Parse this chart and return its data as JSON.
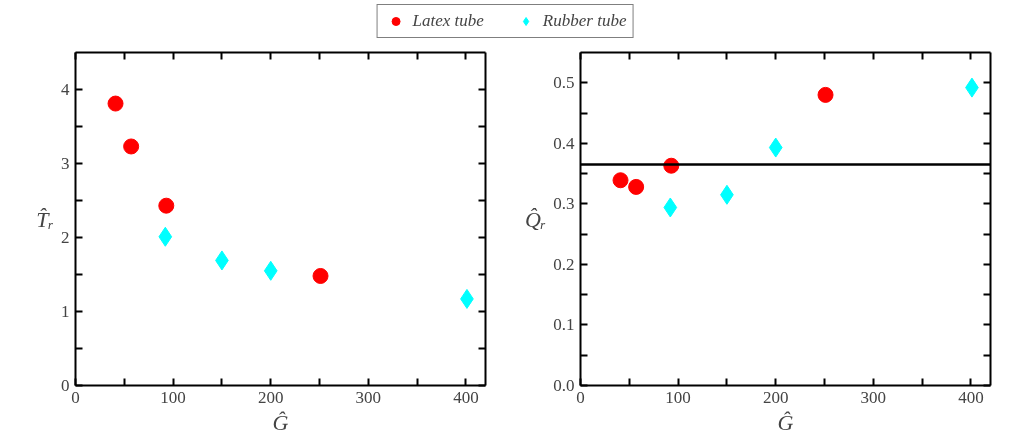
{
  "chart_data": [
    {
      "type": "scatter",
      "xlabel": "Ĝ",
      "ylabel": "T̂ᵣ",
      "legend": "top",
      "grid": false,
      "xlim": [
        0,
        420
      ],
      "ylim": [
        0,
        4.5
      ],
      "xticks": [
        0,
        {
          "value": 50,
          "label": null
        },
        100,
        {
          "value": 150,
          "label": null
        },
        200,
        {
          "value": 250,
          "label": null
        },
        300,
        {
          "value": 350,
          "label": null
        },
        400
      ],
      "yticks": [
        0,
        {
          "value": 0.5,
          "label": null
        },
        1,
        {
          "value": 1.5,
          "label": null
        },
        2,
        {
          "value": 2.5,
          "label": null
        },
        3,
        {
          "value": 3.5,
          "label": null
        },
        4
      ],
      "series": [
        {
          "name": "Latex tube",
          "color": "#ff0000",
          "marker": "circle",
          "x": [
            41,
            57,
            93,
            251
          ],
          "values": [
            3.81,
            3.23,
            2.43,
            1.48
          ]
        },
        {
          "name": "Rubber tube",
          "color": "#00ffff",
          "marker": "diamond",
          "x": [
            92,
            150,
            200,
            401
          ],
          "values": [
            2.01,
            1.69,
            1.55,
            1.17
          ]
        }
      ]
    },
    {
      "type": "scatter",
      "xlabel": "Ĝ",
      "ylabel": "Q̂ᵣ",
      "grid": false,
      "xlim": [
        0,
        420
      ],
      "ylim": [
        0,
        0.55
      ],
      "xticks": [
        0,
        {
          "value": 50,
          "label": null
        },
        100,
        {
          "value": 150,
          "label": null
        },
        200,
        {
          "value": 250,
          "label": null
        },
        300,
        {
          "value": 350,
          "label": null
        },
        400
      ],
      "yticks": [
        {
          "value": 0,
          "label": "0.0"
        },
        {
          "value": 0.05,
          "label": null
        },
        0.1,
        {
          "value": 0.15,
          "label": null
        },
        0.2,
        {
          "value": 0.25,
          "label": null
        },
        0.3,
        {
          "value": 0.35,
          "label": null
        },
        0.4,
        {
          "value": 0.45,
          "label": null
        },
        0.5
      ],
      "ref_lines": [
        {
          "axis": "y",
          "value": 0.365,
          "color": "#000000"
        }
      ],
      "series": [
        {
          "color": "#ff0000",
          "marker": "circle",
          "x": [
            41,
            57,
            93,
            251
          ],
          "values": [
            0.339,
            0.328,
            0.363,
            0.48
          ]
        },
        {
          "color": "#00ffff",
          "marker": "diamond",
          "x": [
            92,
            150,
            200,
            401
          ],
          "values": [
            0.294,
            0.315,
            0.393,
            0.492
          ]
        }
      ]
    }
  ]
}
